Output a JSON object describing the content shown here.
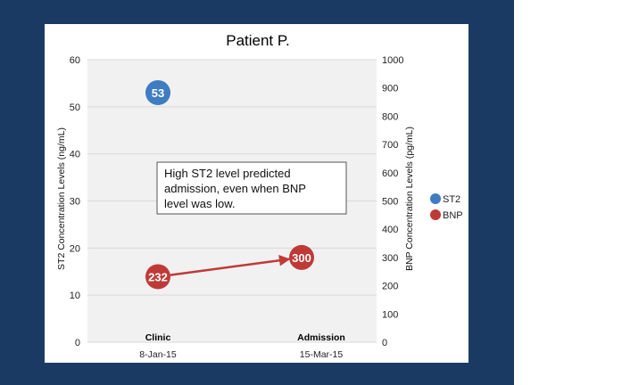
{
  "chart_data": {
    "type": "scatter",
    "title": "Patient P.",
    "categories": [
      "Clinic",
      "Admission"
    ],
    "dates": [
      "8-Jan-15",
      "15-Mar-15"
    ],
    "y_left": {
      "label": "ST2 Concentration Levels (ng/mL)",
      "lim": [
        0,
        60
      ],
      "ticks": [
        0,
        10,
        20,
        30,
        40,
        50,
        60
      ]
    },
    "y_right": {
      "label": "BNP Concentration Levels (pg/mL)",
      "lim": [
        0,
        1000
      ],
      "ticks": [
        0,
        100,
        200,
        300,
        400,
        500,
        600,
        700,
        800,
        900,
        1000
      ]
    },
    "series": [
      {
        "name": "ST2",
        "axis": "left",
        "color": "#3f7cc2",
        "points": [
          {
            "category": "Clinic",
            "value": 53
          }
        ]
      },
      {
        "name": "BNP",
        "axis": "right",
        "color": "#bf3a37",
        "points": [
          {
            "category": "Clinic",
            "value": 232
          },
          {
            "category": "Admission",
            "value": 300
          }
        ]
      }
    ],
    "annotation": "High ST2 level predicted admission, even when BNP level was low.",
    "legend_position": "right",
    "grid": true
  }
}
